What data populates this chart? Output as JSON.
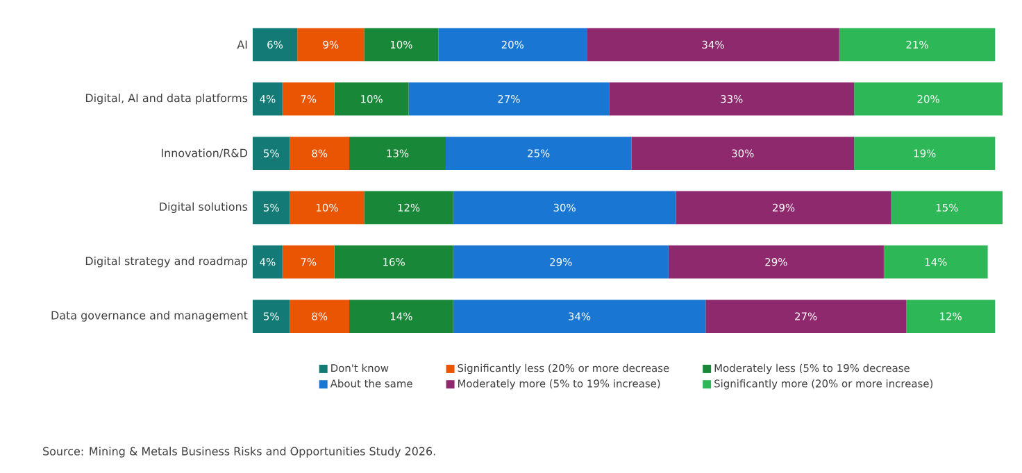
{
  "chart_data": {
    "type": "bar",
    "orientation": "horizontal",
    "stacked": true,
    "legend": "bottom",
    "categories": [
      "AI",
      "Digital, AI and data platforms",
      "Innovation/R&D",
      "Digital solutions",
      "Digital strategy and roadmap",
      "Data governance and management"
    ],
    "series": [
      {
        "name": "Don't know",
        "color": "#137a76",
        "values": [
          6,
          4,
          5,
          5,
          4,
          5
        ],
        "value_labels": [
          "6%",
          "4%",
          "5%",
          "5%",
          "4%",
          "5%"
        ]
      },
      {
        "name": "Significantly less (20% or more decrease",
        "color": "#ea5504",
        "values": [
          9,
          7,
          8,
          10,
          7,
          8
        ],
        "value_labels": [
          "9%",
          "7%",
          "8%",
          "10%",
          "7%",
          "8%"
        ]
      },
      {
        "name": "Moderately less (5% to 19% decrease",
        "color": "#188737",
        "values": [
          10,
          10,
          13,
          12,
          16,
          14
        ],
        "value_labels": [
          "10%",
          "10%",
          "13%",
          "12%",
          "16%",
          "14%"
        ]
      },
      {
        "name": "About the same",
        "color": "#1976d2",
        "values": [
          20,
          27,
          25,
          30,
          29,
          34
        ],
        "value_labels": [
          "20%",
          "27%",
          "25%",
          "30%",
          "29%",
          "34%"
        ]
      },
      {
        "name": "Moderately more (5% to 19% increase)",
        "color": "#8e296e",
        "values": [
          34,
          33,
          30,
          29,
          29,
          27
        ],
        "value_labels": [
          "34%",
          "33%",
          "30%",
          "29%",
          "29%",
          "27%"
        ]
      },
      {
        "name": "Significantly more (20% or more increase)",
        "color": "#2db757",
        "values": [
          21,
          20,
          19,
          15,
          14,
          12
        ],
        "value_labels": [
          "21%",
          "20%",
          "19%",
          "15%",
          "14%",
          "12%"
        ]
      }
    ],
    "annotations": [
      "Source: Mining & Metals Business Risks and Opportunities Study 2026."
    ]
  }
}
